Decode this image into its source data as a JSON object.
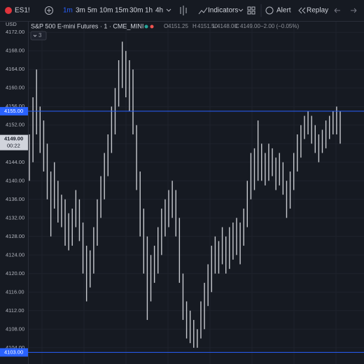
{
  "toolbar": {
    "symbol": "ES1!",
    "intervals": [
      "1m",
      "3m",
      "5m",
      "10m",
      "15m",
      "30m",
      "1h",
      "4h"
    ],
    "indicators": "Indicators",
    "alert": "Alert",
    "replay": "Replay"
  },
  "legend": {
    "currency": "USD",
    "title": "S&P 500 E-mini Futures · 1 · CME_MINI",
    "open_key": "O",
    "open": "4151.25",
    "high_key": "H",
    "high": "4151.50",
    "low_key": "L",
    "low": "4148.00",
    "close_key": "C",
    "close": "4149.00",
    "change": "−2.00 (−0.05%)",
    "badge": "3"
  },
  "chart_data": {
    "type": "bar",
    "ylim": [
      4100.5,
      4174.3
    ],
    "yticks": [
      {
        "value": 4104,
        "label": "4104.00"
      },
      {
        "value": 4108,
        "label": "4108.00"
      },
      {
        "value": 4112,
        "label": "4112.00"
      },
      {
        "value": 4116,
        "label": "4116.00"
      },
      {
        "value": 4120,
        "label": "4120.00"
      },
      {
        "value": 4124,
        "label": "4124.00"
      },
      {
        "value": 4128,
        "label": "4128.00"
      },
      {
        "value": 4132,
        "label": "4132.00"
      },
      {
        "value": 4136,
        "label": "4136.00"
      },
      {
        "value": 4140,
        "label": "4140.00"
      },
      {
        "value": 4144,
        "label": "4144.00"
      },
      {
        "value": 4148,
        "label": "4148.00"
      },
      {
        "value": 4152,
        "label": "4152.00"
      },
      {
        "value": 4156,
        "label": "4156.00"
      },
      {
        "value": 4160,
        "label": "4160.00"
      },
      {
        "value": 4164,
        "label": "4164.00"
      },
      {
        "value": 4168,
        "label": "4168.00"
      },
      {
        "value": 4172,
        "label": "4172.00"
      }
    ],
    "grid": true,
    "color": "#c7c9cf",
    "high": [
      4150,
      4158,
      4164,
      4156,
      4153,
      4148,
      4142,
      4144,
      4140,
      4137,
      4136,
      4133,
      4134,
      4138,
      4136,
      4131,
      4126,
      4125,
      4130,
      4136,
      4141,
      4146,
      4150,
      4156,
      4160,
      4166,
      4170,
      4168,
      4166,
      4164,
      4152,
      4142,
      4134,
      4128,
      4124,
      4126,
      4130,
      4134,
      4136,
      4138,
      4140,
      4138,
      4132,
      4120,
      4114,
      4112,
      4110,
      4108,
      4114,
      4118,
      4122,
      4126,
      4128,
      4127,
      4130,
      4128,
      4130,
      4131,
      4132,
      4131,
      4134,
      4140,
      4146,
      4147,
      4153,
      4148,
      4146,
      4148,
      4147,
      4145,
      4146,
      4144,
      4140,
      4142,
      4146,
      4150,
      4152,
      4154,
      4155,
      4154,
      4152,
      4150,
      4151,
      4153,
      4154,
      4155,
      4156,
      4155
    ],
    "low": [
      4140,
      4144,
      4150,
      4146,
      4142,
      4136,
      4128,
      4134,
      4131,
      4130,
      4126,
      4125,
      4126,
      4130,
      4127,
      4120,
      4114,
      4117,
      4120,
      4126,
      4132,
      4136,
      4141,
      4146,
      4150,
      4156,
      4160,
      4158,
      4155,
      4150,
      4138,
      4128,
      4120,
      4110,
      4114,
      4118,
      4120,
      4124,
      4128,
      4130,
      4132,
      4128,
      4118,
      4110,
      4106,
      4105,
      4104,
      4104,
      4106,
      4108,
      4113,
      4116,
      4120,
      4120,
      4122,
      4120,
      4121,
      4123,
      4124,
      4122,
      4126,
      4130,
      4136,
      4138,
      4140,
      4140,
      4139,
      4140,
      4141,
      4138,
      4139,
      4137,
      4132,
      4134,
      4138,
      4142,
      4145,
      4149,
      4150,
      4148,
      4146,
      4144,
      4146,
      4147,
      4149,
      4150,
      4150,
      4148
    ],
    "price_lines": [
      {
        "value": 4155,
        "label": "4155.00"
      },
      {
        "value": 4103,
        "label": "4103.00"
      }
    ],
    "line_color": "#2962ff",
    "last_price": {
      "value": 4149,
      "label": "4149.00"
    },
    "countdown": "00:22"
  }
}
